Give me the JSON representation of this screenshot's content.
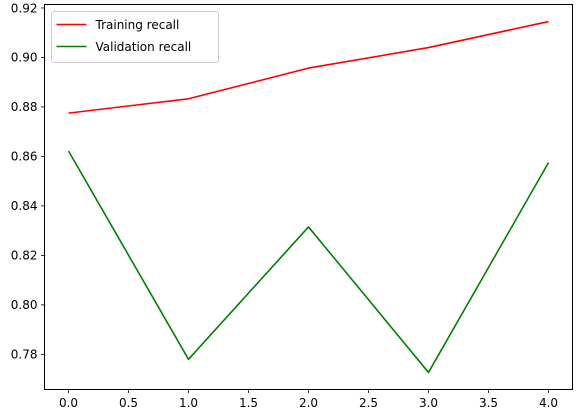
{
  "chart_data": {
    "type": "line",
    "x": [
      0,
      1,
      2,
      3,
      4
    ],
    "series": [
      {
        "name": "Training recall",
        "color": "#ff0000",
        "values": [
          0.8775,
          0.8833,
          0.8957,
          0.904,
          0.9145
        ]
      },
      {
        "name": "Validation recall",
        "color": "#008000",
        "values": [
          0.8622,
          0.778,
          0.8315,
          0.7727,
          0.8575
        ]
      }
    ],
    "xlim": [
      -0.2,
      4.2
    ],
    "ylim": [
      0.7658,
      0.9214
    ],
    "xticks": [
      "0.0",
      "0.5",
      "1.0",
      "1.5",
      "2.0",
      "2.5",
      "3.0",
      "3.5",
      "4.0"
    ],
    "yticks": [
      "0.78",
      "0.80",
      "0.82",
      "0.84",
      "0.86",
      "0.88",
      "0.90",
      "0.92"
    ],
    "title": "",
    "xlabel": "",
    "ylabel": "",
    "grid": false,
    "legend": "top-left"
  }
}
